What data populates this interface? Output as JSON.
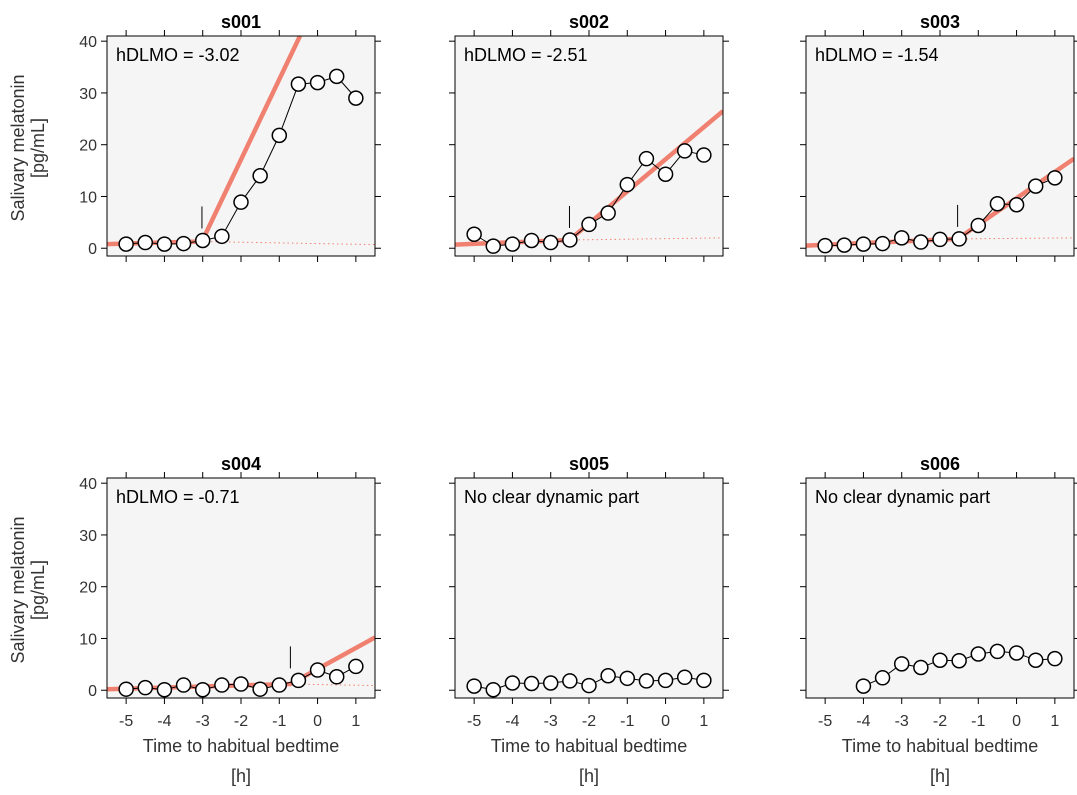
{
  "figure": {
    "ylabel_line1": "Salivary melatonin",
    "ylabel_line2": "[pg/mL]",
    "xlabel_line1": "Time to habitual bedtime",
    "xlabel_line2": "[h]"
  },
  "colors": {
    "panel_bg": "#f5f5f5",
    "fit_line": "#f08070",
    "data_line": "#000000",
    "marker_fill": "#ffffff"
  },
  "chart_data": [
    {
      "type": "line",
      "title": "s001",
      "annotation": "hDLMO = -3.02",
      "hdlmo": -3.02,
      "xlim": [
        -5.5,
        1.5
      ],
      "ylim": [
        -1.5,
        41
      ],
      "xticks": [
        -5,
        -4,
        -3,
        -2,
        -1,
        0,
        1
      ],
      "yticks": [
        0,
        10,
        20,
        30,
        40
      ],
      "x": [
        -5,
        -4.5,
        -4,
        -3.5,
        -3,
        -2.5,
        -2,
        -1.5,
        -1,
        -0.5,
        0,
        0.5,
        1
      ],
      "values": [
        0.8,
        1.1,
        0.8,
        0.9,
        1.5,
        2.3,
        8.9,
        14.0,
        21.8,
        31.7,
        32.0,
        33.2,
        29.0
      ],
      "fit": {
        "x": [
          -5.5,
          -3.02,
          -0.46
        ],
        "y": [
          0.8,
          1.3,
          41
        ]
      },
      "baseline": {
        "x": [
          -3.02,
          1.5
        ],
        "y": [
          1.3,
          0.7
        ]
      }
    },
    {
      "type": "line",
      "title": "s002",
      "annotation": "hDLMO = -2.51",
      "hdlmo": -2.51,
      "xlim": [
        -5.5,
        1.5
      ],
      "ylim": [
        -1.5,
        41
      ],
      "xticks": [
        -5,
        -4,
        -3,
        -2,
        -1,
        0,
        1
      ],
      "yticks": [
        0,
        10,
        20,
        30,
        40
      ],
      "x": [
        -5,
        -4.5,
        -4,
        -3.5,
        -3,
        -2.5,
        -2,
        -1.5,
        -1,
        -0.5,
        0,
        0.5,
        1
      ],
      "values": [
        2.7,
        0.4,
        0.8,
        1.5,
        1.1,
        1.6,
        4.6,
        6.8,
        12.3,
        17.3,
        14.3,
        18.8,
        18.0
      ],
      "fit": {
        "x": [
          -5.5,
          -2.51,
          1.5
        ],
        "y": [
          0.7,
          1.6,
          26.5
        ]
      },
      "baseline": {
        "x": [
          -2.51,
          1.5
        ],
        "y": [
          1.6,
          2.0
        ]
      }
    },
    {
      "type": "line",
      "title": "s003",
      "annotation": "hDLMO = -1.54",
      "hdlmo": -1.54,
      "xlim": [
        -5.5,
        1.5
      ],
      "ylim": [
        -1.5,
        41
      ],
      "xticks": [
        -5,
        -4,
        -3,
        -2,
        -1,
        0,
        1
      ],
      "yticks": [
        0,
        10,
        20,
        30,
        40
      ],
      "x": [
        -5,
        -4.5,
        -4,
        -3.5,
        -3,
        -2.5,
        -2,
        -1.5,
        -1,
        -0.5,
        0,
        0.5,
        1
      ],
      "values": [
        0.5,
        0.6,
        0.8,
        0.9,
        2.0,
        1.2,
        1.7,
        1.8,
        4.4,
        8.6,
        8.4,
        12.0,
        13.6
      ],
      "fit": {
        "x": [
          -5.5,
          -1.54,
          1.5
        ],
        "y": [
          0.5,
          1.8,
          17.3
        ]
      },
      "baseline": {
        "x": [
          -1.54,
          1.5
        ],
        "y": [
          1.8,
          2.0
        ]
      }
    },
    {
      "type": "line",
      "title": "s004",
      "annotation": "hDLMO = -0.71",
      "hdlmo": -0.71,
      "xlim": [
        -5.5,
        1.5
      ],
      "ylim": [
        -1.5,
        41
      ],
      "xticks": [
        -5,
        -4,
        -3,
        -2,
        -1,
        0,
        1
      ],
      "yticks": [
        0,
        10,
        20,
        30,
        40
      ],
      "x": [
        -5,
        -4.5,
        -4,
        -3.5,
        -3,
        -2.5,
        -2,
        -1.5,
        -1,
        -0.5,
        0,
        0.5,
        1
      ],
      "values": [
        0.2,
        0.5,
        0.1,
        1.0,
        0.1,
        1.0,
        1.2,
        0.2,
        1.0,
        1.9,
        3.9,
        2.6,
        4.6
      ],
      "fit": {
        "x": [
          -5.5,
          -0.71,
          1.5
        ],
        "y": [
          0.2,
          1.2,
          10.2
        ]
      },
      "baseline": {
        "x": [
          -0.71,
          1.5
        ],
        "y": [
          1.2,
          0.9
        ]
      }
    },
    {
      "type": "line",
      "title": "s005",
      "annotation": "No clear dynamic part",
      "hdlmo": null,
      "xlim": [
        -5.5,
        1.5
      ],
      "ylim": [
        -1.5,
        41
      ],
      "xticks": [
        -5,
        -4,
        -3,
        -2,
        -1,
        0,
        1
      ],
      "yticks": [
        0,
        10,
        20,
        30,
        40
      ],
      "x": [
        -5,
        -4.5,
        -4,
        -3.5,
        -3,
        -2.5,
        -2,
        -1.5,
        -1,
        -0.5,
        0,
        0.5,
        1
      ],
      "values": [
        0.8,
        0.1,
        1.4,
        1.3,
        1.4,
        1.8,
        0.9,
        2.8,
        2.3,
        1.8,
        1.9,
        2.5,
        1.9
      ],
      "fit": null,
      "baseline": null
    },
    {
      "type": "line",
      "title": "s006",
      "annotation": "No clear dynamic part",
      "hdlmo": null,
      "xlim": [
        -5.5,
        1.5
      ],
      "ylim": [
        -1.5,
        41
      ],
      "xticks": [
        -5,
        -4,
        -3,
        -2,
        -1,
        0,
        1
      ],
      "yticks": [
        0,
        10,
        20,
        30,
        40
      ],
      "x": [
        -4,
        -3.5,
        -3,
        -2.5,
        -2,
        -1.5,
        -1,
        -0.5,
        0,
        0.5,
        1
      ],
      "values": [
        0.8,
        2.4,
        5.1,
        4.4,
        5.8,
        5.7,
        7.0,
        7.5,
        7.2,
        5.8,
        6.1
      ],
      "fit": null,
      "baseline": null
    }
  ]
}
